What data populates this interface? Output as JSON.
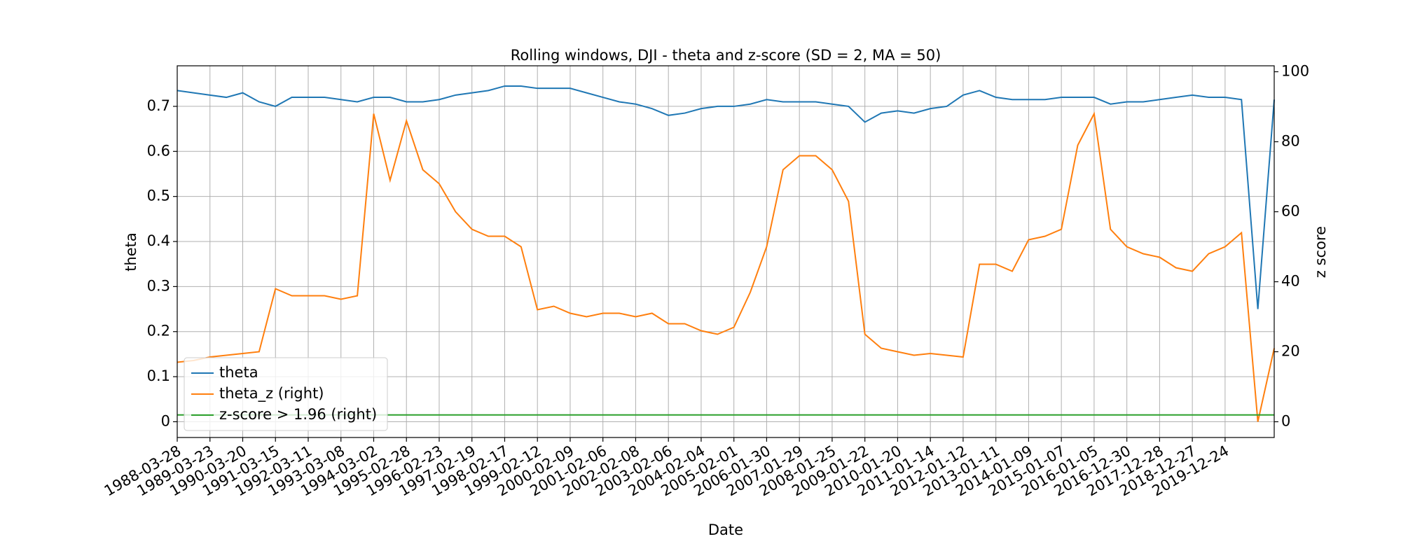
{
  "chart_data": {
    "type": "line",
    "title": "Rolling windows, DJI - theta and z-score (SD = 2, MA = 50)",
    "x_label": "Date",
    "y_label": "theta",
    "y2_label": "z score",
    "categories": [
      "1988-03-28",
      null,
      "1989-03-23",
      null,
      "1990-03-20",
      null,
      "1991-03-15",
      null,
      "1992-03-11",
      null,
      "1993-03-08",
      null,
      "1994-03-02",
      null,
      "1995-02-28",
      null,
      "1996-02-23",
      null,
      "1997-02-19",
      null,
      "1998-02-17",
      null,
      "1999-02-12",
      null,
      "2000-02-09",
      null,
      "2001-02-06",
      null,
      "2002-02-08",
      null,
      "2003-02-06",
      null,
      "2004-02-04",
      null,
      "2005-02-01",
      null,
      "2006-01-30",
      null,
      "2007-01-29",
      null,
      "2008-01-25",
      null,
      "2009-01-22",
      null,
      "2010-01-20",
      null,
      "2011-01-14",
      null,
      "2012-01-12",
      null,
      "2013-01-11",
      null,
      "2014-01-09",
      null,
      "2015-01-07",
      null,
      "2016-01-05",
      null,
      "2016-12-30",
      null,
      "2017-12-28",
      null,
      "2018-12-27",
      null,
      "2019-12-24",
      null,
      null,
      null
    ],
    "series": [
      {
        "name": "theta",
        "color": "#1f77b4",
        "axis": "y",
        "values": [
          0.735,
          0.73,
          0.725,
          0.72,
          0.73,
          0.71,
          0.7,
          0.72,
          0.72,
          0.72,
          0.715,
          0.71,
          0.72,
          0.72,
          0.71,
          0.71,
          0.715,
          0.725,
          0.73,
          0.735,
          0.745,
          0.745,
          0.74,
          0.74,
          0.74,
          0.73,
          0.72,
          0.71,
          0.705,
          0.695,
          0.68,
          0.685,
          0.695,
          0.7,
          0.7,
          0.705,
          0.715,
          0.71,
          0.71,
          0.71,
          0.705,
          0.7,
          0.665,
          0.685,
          0.69,
          0.685,
          0.695,
          0.7,
          0.725,
          0.735,
          0.72,
          0.715,
          0.715,
          0.715,
          0.72,
          0.72,
          0.72,
          0.705,
          0.71,
          0.71,
          0.715,
          0.72,
          0.725,
          0.72,
          0.72,
          0.715,
          0.25,
          0.715
        ]
      },
      {
        "name": "theta_z (right)",
        "color": "#ff7f0e",
        "axis": "y2",
        "values": [
          17,
          17.5,
          18.5,
          19,
          19.5,
          20,
          38,
          36,
          36,
          36,
          35,
          36,
          88,
          69,
          86,
          72,
          68,
          60,
          55,
          53,
          53,
          50,
          32,
          33,
          31,
          30,
          31,
          31,
          30,
          31,
          28,
          28,
          26,
          25,
          27,
          37,
          50,
          72,
          76,
          76,
          72,
          63,
          25,
          21,
          20,
          19,
          19.5,
          19,
          18.5,
          45,
          45,
          43,
          52,
          53,
          55,
          79,
          88,
          55,
          50,
          48,
          47,
          44,
          43,
          48,
          50,
          54,
          0,
          21
        ]
      },
      {
        "name": "z-score > 1.96 (right)",
        "color": "#2ca02c",
        "axis": "y2",
        "values": [
          1.96,
          1.96,
          1.96,
          1.96,
          1.96,
          1.96,
          1.96,
          1.96,
          1.96,
          1.96,
          1.96,
          1.96,
          1.96,
          1.96,
          1.96,
          1.96,
          1.96,
          1.96,
          1.96,
          1.96,
          1.96,
          1.96,
          1.96,
          1.96,
          1.96,
          1.96,
          1.96,
          1.96,
          1.96,
          1.96,
          1.96,
          1.96,
          1.96,
          1.96,
          1.96,
          1.96,
          1.96,
          1.96,
          1.96,
          1.96,
          1.96,
          1.96,
          1.96,
          1.96,
          1.96,
          1.96,
          1.96,
          1.96,
          1.96,
          1.96,
          1.96,
          1.96,
          1.96,
          1.96,
          1.96,
          1.96,
          1.96,
          1.96,
          1.96,
          1.96,
          1.96,
          1.96,
          1.96,
          1.96,
          1.96,
          1.96,
          1.96,
          1.96
        ]
      }
    ],
    "ylim": [
      -0.035,
      0.79
    ],
    "yticks": [
      0.0,
      0.1,
      0.2,
      0.3,
      0.4,
      0.5,
      0.6,
      0.7
    ],
    "y2lim": [
      -4.5,
      101.7
    ],
    "y2ticks": [
      0,
      20,
      40,
      60,
      80,
      100
    ],
    "grid": true,
    "legend": "lower left"
  }
}
